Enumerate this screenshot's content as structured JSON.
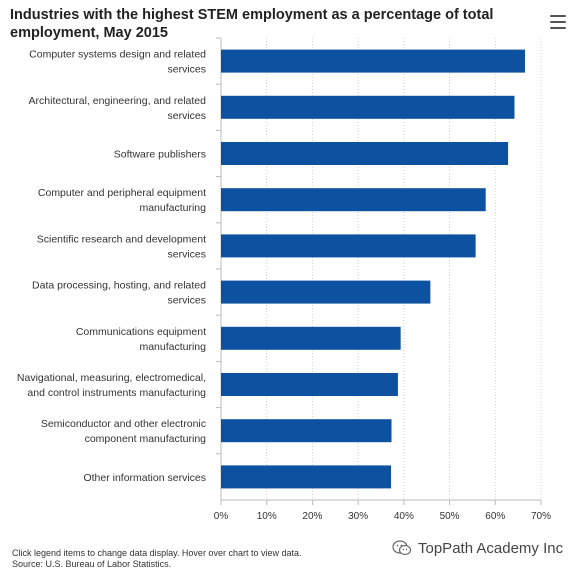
{
  "chart_data": {
    "type": "bar",
    "orientation": "horizontal",
    "title": "Industries with the highest STEM employment as a percentage of total employment, May 2015",
    "categories": [
      [
        "Computer systems design and related",
        "services"
      ],
      [
        "Architectural, engineering, and related",
        "services"
      ],
      [
        "Software publishers"
      ],
      [
        "Computer and peripheral equipment",
        "manufacturing"
      ],
      [
        "Scientific research and development",
        "services"
      ],
      [
        "Data processing, hosting, and related",
        "services"
      ],
      [
        "Communications equipment",
        "manufacturing"
      ],
      [
        "Navigational, measuring, electromedical,",
        "and control instruments manufacturing"
      ],
      [
        "Semiconductor and other electronic",
        "component manufacturing"
      ],
      [
        "Other information services"
      ]
    ],
    "values": [
      66.5,
      64.2,
      62.8,
      57.9,
      55.7,
      45.8,
      39.3,
      38.7,
      37.3,
      37.2
    ],
    "xlim": [
      0,
      70
    ],
    "ticks": [
      "0%",
      "10%",
      "20%",
      "30%",
      "40%",
      "50%",
      "60%",
      "70%"
    ],
    "tick_values": [
      0,
      10,
      20,
      30,
      40,
      50,
      60,
      70
    ],
    "grid": true,
    "bar_color": "#0d52a1",
    "grid_color": "#cccccc",
    "axis_color": "#bbbbbb"
  },
  "footnote": {
    "line1": "Click legend items to change data display. Hover over chart to view data.",
    "line2": "Source: U.S. Bureau of Labor Statistics."
  },
  "watermark": {
    "text": "TopPath Academy Inc",
    "icon": "wechat-icon"
  },
  "menu_icon": "hamburger-menu-icon"
}
